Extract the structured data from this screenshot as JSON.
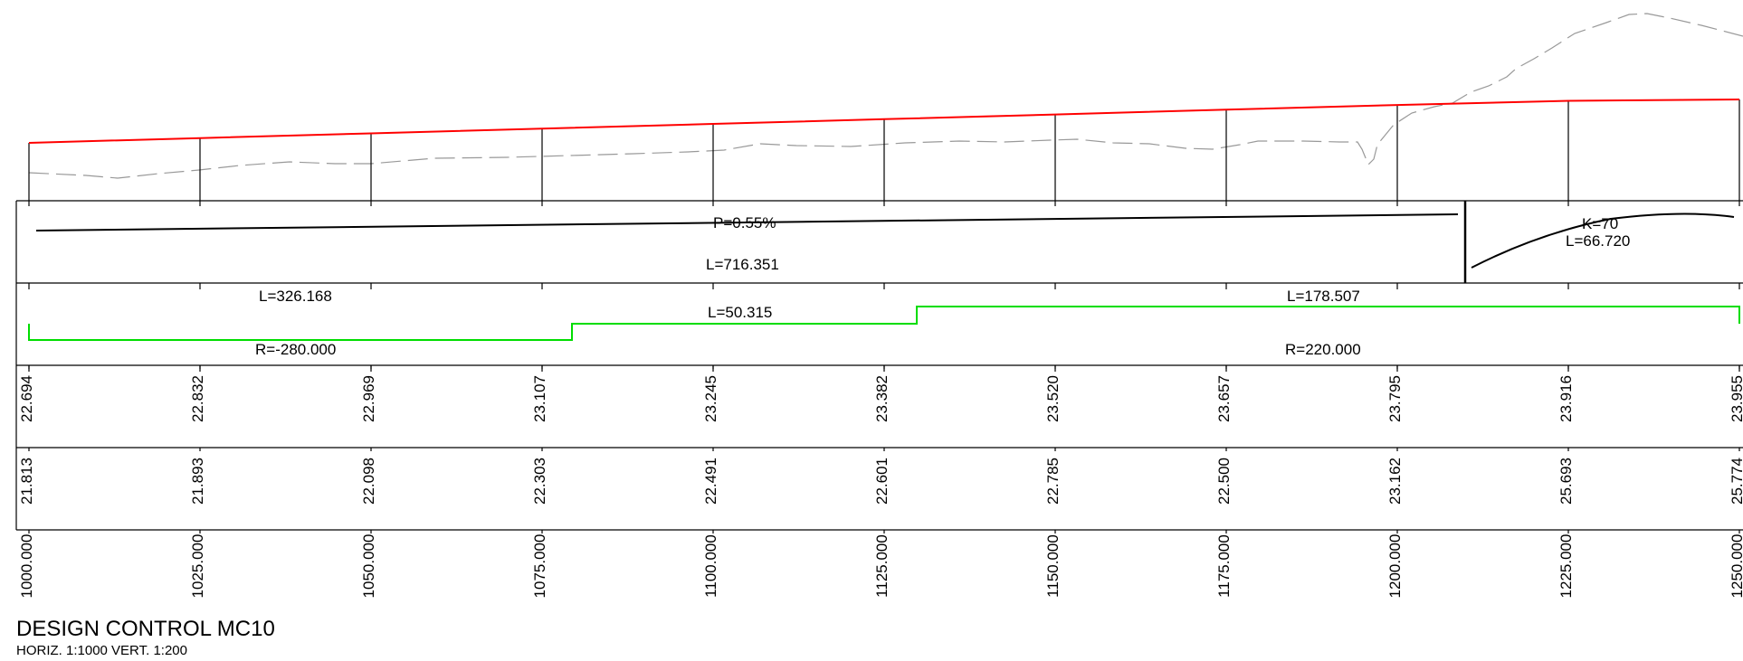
{
  "title": "DESIGN CONTROL MC10",
  "subtitle": "HORIZ. 1:1000  VERT. 1:200",
  "colors": {
    "design_profile": "#ff0000",
    "existing_ground": "#999999",
    "horizontal_alignment": "#00dd00",
    "lines": "#000000"
  },
  "profile": {
    "chainages": [
      1000,
      1025,
      1050,
      1075,
      1100,
      1125,
      1150,
      1175,
      1200,
      1225,
      1250
    ],
    "design_levels": [
      22.694,
      22.832,
      22.969,
      23.107,
      23.245,
      23.382,
      23.52,
      23.657,
      23.795,
      23.916,
      23.955
    ],
    "existing_levels": [
      21.813,
      21.893,
      22.098,
      22.303,
      22.491,
      22.601,
      22.785,
      22.5,
      23.162,
      25.693,
      25.774
    ]
  },
  "vertical_band": {
    "grade_label": "P=0.55%",
    "grade_length_label": "L=716.351",
    "curve_k_label": "K=70",
    "curve_length_label": "L=66.720"
  },
  "horizontal_band": {
    "segments": [
      {
        "length_label": "L=326.168",
        "radius_label": "R=-280.000"
      },
      {
        "length_label": "L=50.315",
        "radius_label": ""
      },
      {
        "length_label": "L=178.507",
        "radius_label": "R=220.000"
      }
    ]
  },
  "rows": {
    "design_labels": [
      "22.694",
      "22.832",
      "22.969",
      "23.107",
      "23.245",
      "23.382",
      "23.520",
      "23.657",
      "23.795",
      "23.916",
      "23.955"
    ],
    "existing_labels": [
      "21.813",
      "21.893",
      "22.098",
      "22.303",
      "22.491",
      "22.601",
      "22.785",
      "22.500",
      "23.162",
      "25.693",
      "25.774"
    ],
    "chainage_labels": [
      "1000.000",
      "1025.000",
      "1050.000",
      "1075.000",
      "1100.000",
      "1125.000",
      "1150.000",
      "1175.000",
      "1200.000",
      "1225.000",
      "1250.000"
    ]
  }
}
